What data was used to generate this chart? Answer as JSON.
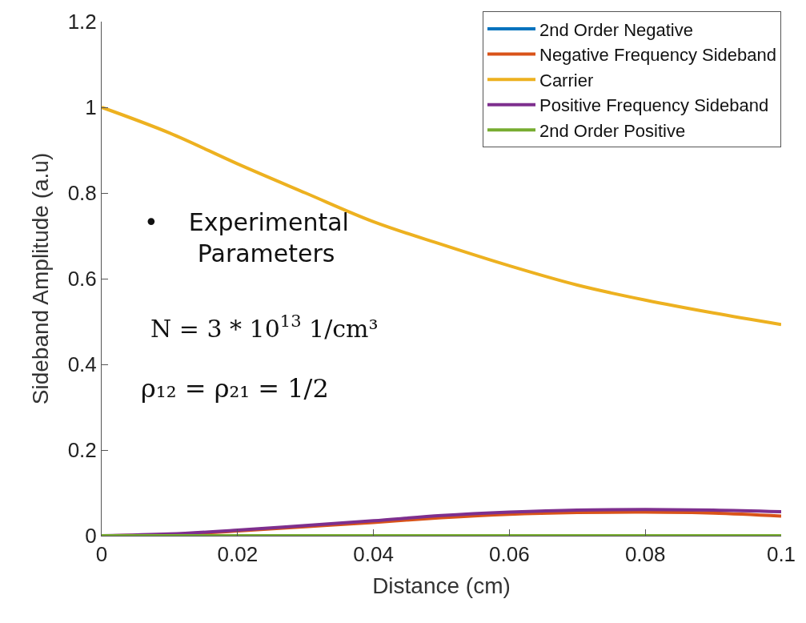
{
  "chart_data": {
    "type": "line",
    "xlabel": "Distance (cm)",
    "ylabel": "Sideband Amplitude (a.u)",
    "x": [
      0,
      0.01,
      0.02,
      0.03,
      0.04,
      0.05,
      0.06,
      0.07,
      0.08,
      0.09,
      0.1
    ],
    "series": [
      {
        "name": "2nd Order Negative",
        "color": "#0072bd",
        "values": [
          null,
          null,
          null,
          null,
          null,
          null,
          null,
          null,
          null,
          null,
          null
        ]
      },
      {
        "name": "Negative Frequency Sideband",
        "color": "#d95319",
        "values": [
          0,
          0.003,
          0.011,
          0.021,
          0.031,
          0.042,
          0.05,
          0.054,
          0.055,
          0.053,
          0.046
        ]
      },
      {
        "name": "Carrier",
        "color": "#edb120",
        "values": [
          1.0,
          0.94,
          0.868,
          0.8,
          0.733,
          0.68,
          0.63,
          0.585,
          0.55,
          0.52,
          0.493
        ]
      },
      {
        "name": "Positive Frequency Sideband",
        "color": "#7e2f8e",
        "values": [
          0,
          0.004,
          0.013,
          0.024,
          0.035,
          0.047,
          0.055,
          0.06,
          0.061,
          0.06,
          0.056
        ]
      },
      {
        "name": "2nd Order Positive",
        "color": "#77ac30",
        "values": [
          0,
          0,
          0,
          0,
          0,
          0,
          0,
          0,
          0,
          0,
          0
        ]
      }
    ],
    "xlim": [
      0,
      0.1
    ],
    "xticks": [
      0,
      0.02,
      0.04,
      0.06,
      0.08,
      0.1
    ],
    "ylim": [
      0,
      1.2
    ],
    "yticks": [
      0,
      0.2,
      0.4,
      0.6,
      0.8,
      1,
      1.2
    ],
    "annotations": [
      "•    Experimental\n       Parameters",
      "N = 3 * 10$^{13}$ 1/cm³",
      "ρ₁₂ = ρ₂₁ = 1/2"
    ],
    "legend": "top right",
    "marker": "none",
    "line_style": "solid"
  }
}
